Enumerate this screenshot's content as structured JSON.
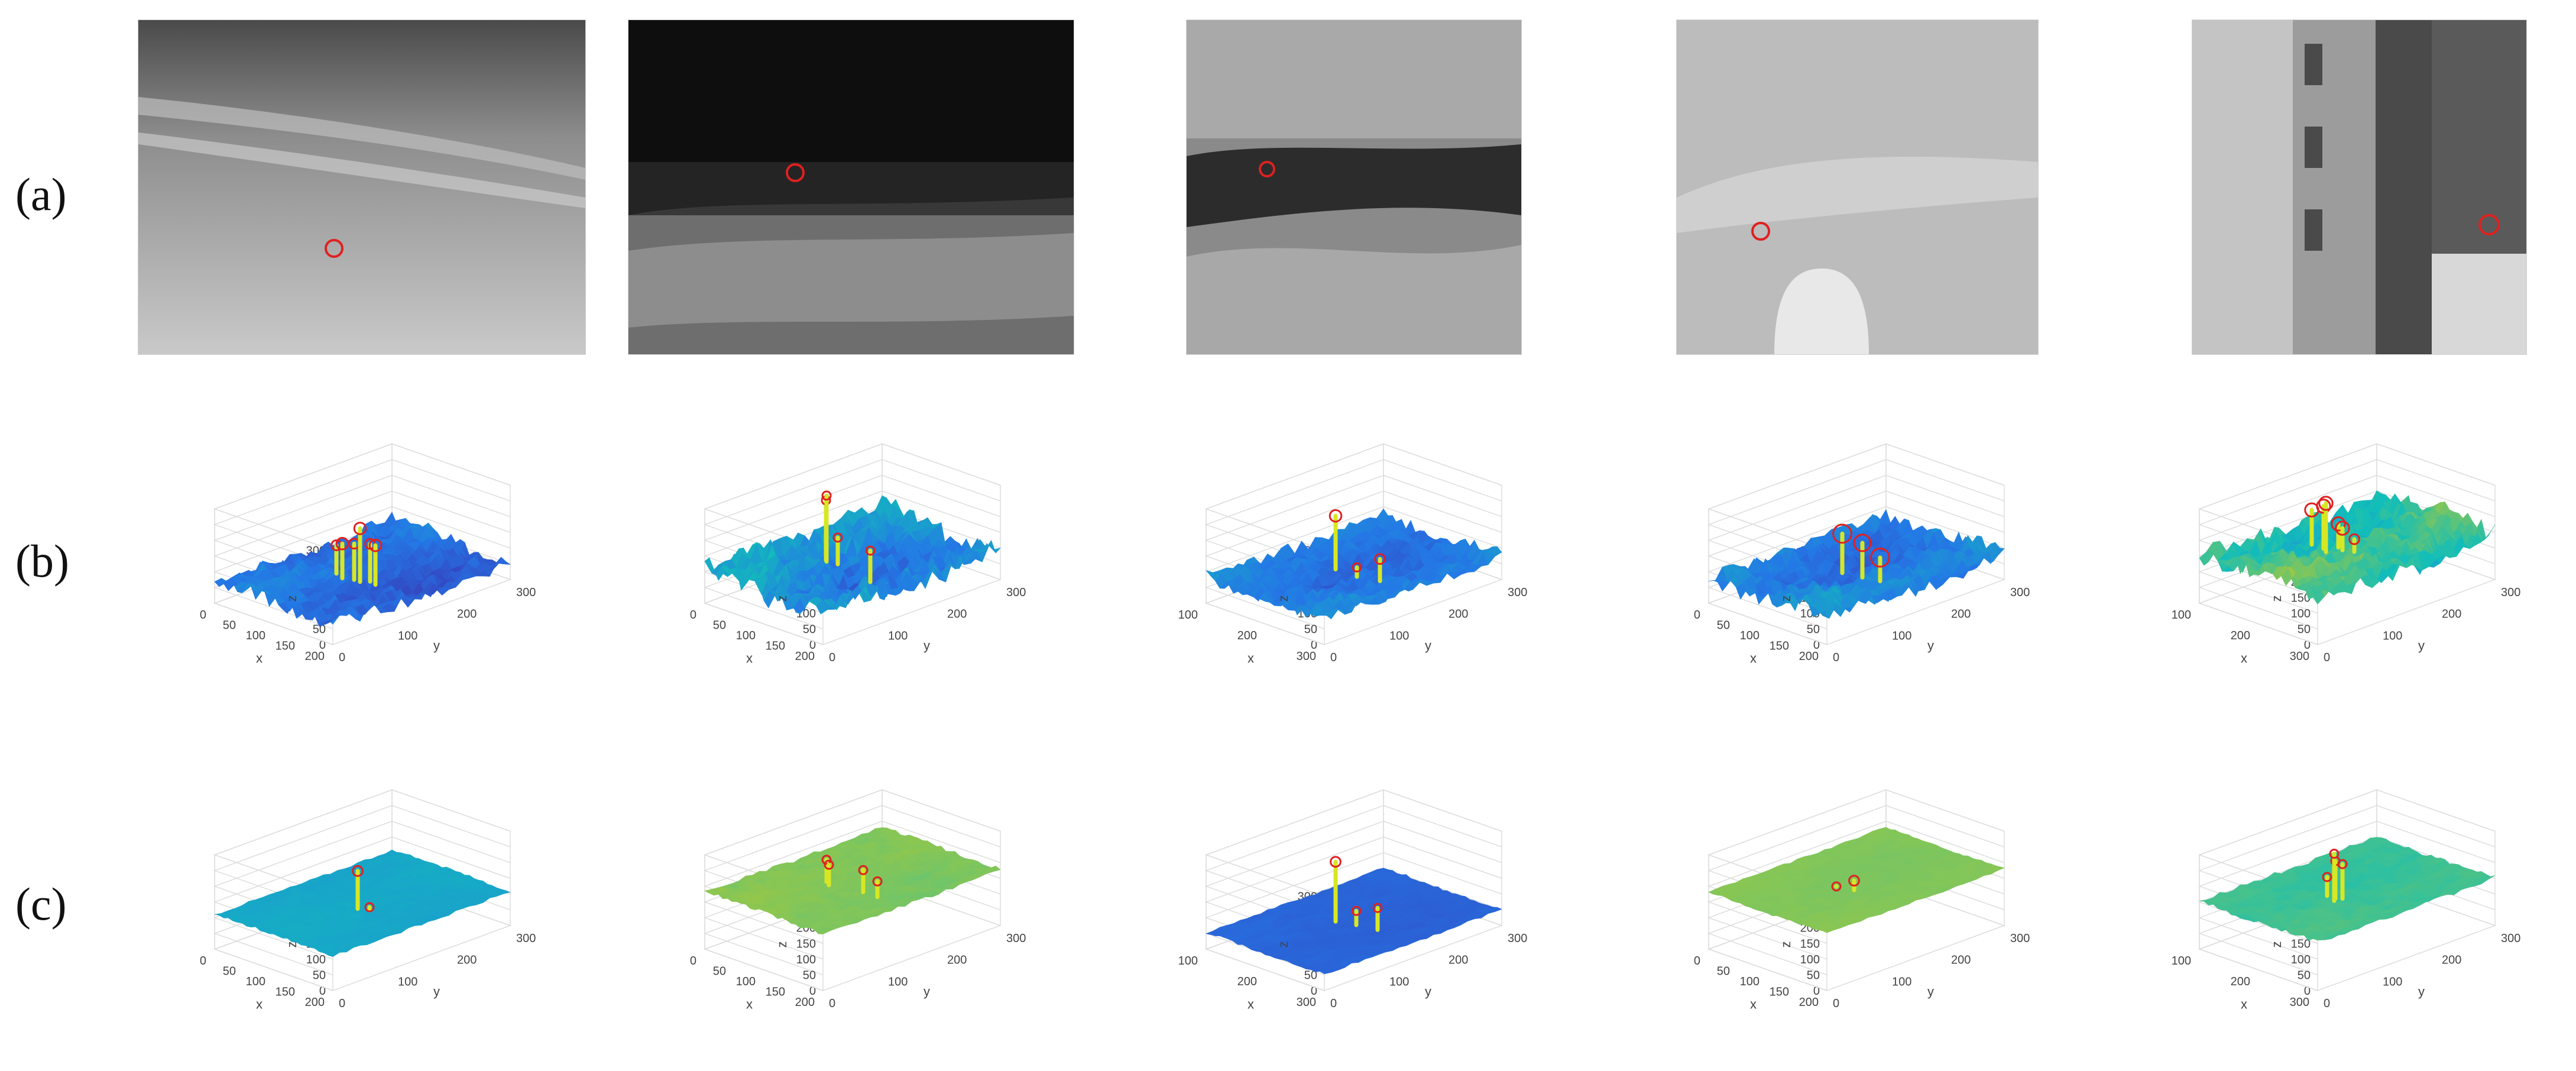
{
  "rows": [
    {
      "label": "(a)"
    },
    {
      "label": "(b)"
    },
    {
      "label": "(c)"
    }
  ],
  "chart_data": [
    {
      "type": "surface3d",
      "row": "b",
      "col": 1,
      "xlabel": "x",
      "ylabel": "y",
      "zlabel": "z",
      "xticks": [
        "0",
        "50",
        "100",
        "150",
        "200"
      ],
      "yticks": [
        "0",
        "100",
        "200",
        "300"
      ],
      "zticks": [
        "0",
        "50",
        "100",
        "150",
        "200",
        "250",
        "300"
      ],
      "base": 60,
      "noise": 45,
      "peaks": [
        {
          "x": 0.4,
          "y": 0.42,
          "z": 150,
          "r": 6
        },
        {
          "x": 0.48,
          "y": 0.4,
          "z": 170,
          "r": 7
        },
        {
          "x": 0.55,
          "y": 0.42,
          "z": 175,
          "r": 6
        },
        {
          "x": 0.6,
          "y": 0.42,
          "z": 230,
          "r": 7
        },
        {
          "x": 0.64,
          "y": 0.45,
          "z": 180,
          "r": 6
        },
        {
          "x": 0.7,
          "y": 0.44,
          "z": 185,
          "r": 7
        }
      ]
    },
    {
      "type": "surface3d",
      "row": "b",
      "col": 2,
      "xlabel": "x",
      "ylabel": "y",
      "zlabel": "z",
      "xticks": [
        "0",
        "50",
        "100",
        "150",
        "200"
      ],
      "yticks": [
        "0",
        "100",
        "200",
        "300"
      ],
      "zticks": [
        "0",
        "50",
        "100",
        "150",
        "200",
        "250",
        "300"
      ],
      "base": 90,
      "noise": 70,
      "peaks": [
        {
          "x": 0.35,
          "y": 0.45,
          "z": 280,
          "r": 5
        },
        {
          "x": 0.37,
          "y": 0.44,
          "z": 300,
          "r": 5
        },
        {
          "x": 0.45,
          "y": 0.45,
          "z": 175,
          "r": 5
        },
        {
          "x": 0.8,
          "y": 0.4,
          "z": 190,
          "r": 5
        }
      ]
    },
    {
      "type": "surface3d",
      "row": "b",
      "col": 3,
      "xlabel": "x",
      "ylabel": "y",
      "zlabel": "z",
      "xticks": [
        "100",
        "200",
        "300"
      ],
      "yticks": [
        "0",
        "100",
        "200",
        "300"
      ],
      "zticks": [
        "0",
        "50",
        "100",
        "150",
        "200",
        "250",
        "300"
      ],
      "base": 70,
      "noise": 40,
      "peaks": [
        {
          "x": 0.42,
          "y": 0.45,
          "z": 240,
          "r": 7
        },
        {
          "x": 0.6,
          "y": 0.45,
          "z": 100,
          "r": 5
        },
        {
          "x": 0.75,
          "y": 0.48,
          "z": 140,
          "r": 6
        }
      ]
    },
    {
      "type": "surface3d",
      "row": "b",
      "col": 4,
      "xlabel": "x",
      "ylabel": "y",
      "zlabel": "z",
      "xticks": [
        "0",
        "50",
        "100",
        "150",
        "200"
      ],
      "yticks": [
        "0",
        "100",
        "200",
        "300"
      ],
      "zticks": [
        "0",
        "50",
        "100",
        "150",
        "200",
        "250",
        "300"
      ],
      "base": 75,
      "noise": 50,
      "peaks": [
        {
          "x": 0.5,
          "y": 0.42,
          "z": 200,
          "r": 11
        },
        {
          "x": 0.64,
          "y": 0.44,
          "z": 185,
          "r": 10
        },
        {
          "x": 0.76,
          "y": 0.46,
          "z": 150,
          "r": 11
        }
      ]
    },
    {
      "type": "surface3d",
      "row": "b",
      "col": 5,
      "xlabel": "x",
      "ylabel": "y",
      "zlabel": "z",
      "xticks": [
        "100",
        "200",
        "300"
      ],
      "yticks": [
        "0",
        "100",
        "200",
        "300"
      ],
      "zticks": [
        "0",
        "50",
        "100",
        "150",
        "200",
        "250",
        "300"
      ],
      "base": 150,
      "noise": 60,
      "peaks": [
        {
          "x": 0.35,
          "y": 0.4,
          "z": 260,
          "r": 8
        },
        {
          "x": 0.45,
          "y": 0.4,
          "z": 285,
          "r": 8
        },
        {
          "x": 0.5,
          "y": 0.38,
          "z": 305,
          "r": 8
        },
        {
          "x": 0.5,
          "y": 0.45,
          "z": 225,
          "r": 8
        },
        {
          "x": 0.55,
          "y": 0.44,
          "z": 220,
          "r": 8
        },
        {
          "x": 0.62,
          "y": 0.46,
          "z": 190,
          "r": 6
        }
      ]
    },
    {
      "type": "surface3d",
      "row": "c",
      "col": 1,
      "xlabel": "x",
      "ylabel": "y",
      "zlabel": "z",
      "xticks": [
        "0",
        "50",
        "100",
        "150",
        "200"
      ],
      "yticks": [
        "0",
        "100",
        "200",
        "300"
      ],
      "zticks": [
        "0",
        "50",
        "100",
        "150",
        "200",
        "250",
        "300"
      ],
      "base": 110,
      "noise": 8,
      "peaks": [
        {
          "x": 0.55,
          "y": 0.44,
          "z": 230,
          "r": 6
        },
        {
          "x": 0.62,
          "y": 0.46,
          "z": 120,
          "r": 5
        }
      ]
    },
    {
      "type": "surface3d",
      "row": "c",
      "col": 2,
      "xlabel": "x",
      "ylabel": "y",
      "zlabel": "z",
      "xticks": [
        "0",
        "50",
        "100",
        "150",
        "200"
      ],
      "yticks": [
        "0",
        "100",
        "200",
        "300"
      ],
      "zticks": [
        "0",
        "50",
        "100",
        "150",
        "200",
        "250",
        "300"
      ],
      "base": 180,
      "noise": 12,
      "peaks": [
        {
          "x": 0.4,
          "y": 0.42,
          "z": 250,
          "r": 5
        },
        {
          "x": 0.45,
          "y": 0.4,
          "z": 245,
          "r": 5
        },
        {
          "x": 0.68,
          "y": 0.44,
          "z": 250,
          "r": 5
        },
        {
          "x": 0.8,
          "y": 0.44,
          "z": 230,
          "r": 5
        }
      ]
    },
    {
      "type": "surface3d",
      "row": "c",
      "col": 3,
      "xlabel": "x",
      "ylabel": "y",
      "zlabel": "z",
      "xticks": [
        "100",
        "200",
        "300"
      ],
      "yticks": [
        "0",
        "100",
        "200",
        "300"
      ],
      "zticks": [
        "0",
        "50",
        "100",
        "150",
        "200",
        "250",
        "300"
      ],
      "base": 50,
      "noise": 8,
      "peaks": [
        {
          "x": 0.42,
          "y": 0.45,
          "z": 240,
          "r": 6
        },
        {
          "x": 0.55,
          "y": 0.48,
          "z": 95,
          "r": 5
        },
        {
          "x": 0.7,
          "y": 0.5,
          "z": 120,
          "r": 5
        }
      ]
    },
    {
      "type": "surface3d",
      "row": "c",
      "col": 4,
      "xlabel": "x",
      "ylabel": "y",
      "zlabel": "z",
      "xticks": [
        "0",
        "50",
        "100",
        "150",
        "200"
      ],
      "yticks": [
        "0",
        "100",
        "200",
        "300"
      ],
      "zticks": [
        "0",
        "50",
        "100",
        "150",
        "200",
        "250",
        "300"
      ],
      "base": 180,
      "noise": 6,
      "peaks": [
        {
          "x": 0.48,
          "y": 0.4,
          "z": 180,
          "r": 5
        },
        {
          "x": 0.6,
          "y": 0.42,
          "z": 210,
          "r": 6
        }
      ]
    },
    {
      "type": "surface3d",
      "row": "c",
      "col": 5,
      "xlabel": "x",
      "ylabel": "y",
      "zlabel": "z",
      "xticks": [
        "100",
        "200",
        "300"
      ],
      "yticks": [
        "0",
        "100",
        "200",
        "300"
      ],
      "zticks": [
        "0",
        "50",
        "100",
        "150",
        "200",
        "250",
        "300"
      ],
      "base": 150,
      "noise": 14,
      "peaks": [
        {
          "x": 0.48,
          "y": 0.4,
          "z": 210,
          "r": 5
        },
        {
          "x": 0.55,
          "y": 0.4,
          "z": 270,
          "r": 5
        },
        {
          "x": 0.57,
          "y": 0.38,
          "z": 300,
          "r": 5
        },
        {
          "x": 0.58,
          "y": 0.42,
          "z": 260,
          "r": 5
        }
      ]
    }
  ]
}
